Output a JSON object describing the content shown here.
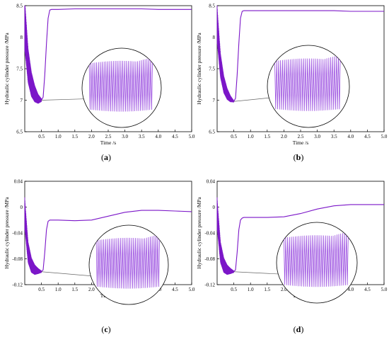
{
  "colors": {
    "series": "#7b16c8",
    "inset_series": "#9b4fe0",
    "axis": "#000000",
    "connector": "#666666"
  },
  "chart_data": [
    {
      "panel": "a",
      "type": "line",
      "xlabel": "Time /s",
      "ylabel": "Hydraulic cylinder pressure /MPa",
      "xlim": [
        0,
        5.0
      ],
      "ylim": [
        6.5,
        8.5
      ],
      "xticks": [
        "0.5",
        "1.0",
        "1.5",
        "2.0",
        "2.5",
        "3.0",
        "3.5",
        "4.0",
        "4.5",
        "5.0"
      ],
      "yticks": [
        "6.5",
        "7",
        "7.5",
        "8",
        "8.5"
      ],
      "ytick_values": [
        6.5,
        7,
        7.5,
        8,
        8.5
      ],
      "x": [
        0.0,
        0.1,
        0.2,
        0.3,
        0.4,
        0.5,
        0.55,
        0.6,
        0.65,
        0.7,
        0.75,
        0.8,
        1.0,
        1.5,
        2.0,
        2.5,
        3.0,
        3.5,
        4.0,
        4.5,
        5.0
      ],
      "y": [
        8.2,
        7.55,
        7.25,
        7.1,
        7.02,
        7.0,
        7.05,
        7.4,
        7.9,
        8.3,
        8.43,
        8.44,
        8.44,
        8.45,
        8.45,
        8.45,
        8.45,
        8.45,
        8.44,
        8.44,
        8.44
      ],
      "oscillation": {
        "x_end": 0.5,
        "amplitude_start": 0.85,
        "amplitude_end": 0.05
      },
      "zoom_point": [
        0.5,
        7.0
      ]
    },
    {
      "panel": "b",
      "type": "line",
      "xlabel": "Time /s",
      "ylabel": "Hydraulic cylinder pressure /MPa",
      "xlim": [
        0,
        5.0
      ],
      "ylim": [
        6.5,
        8.5
      ],
      "xticks": [
        "0.5",
        "1.0",
        "1.5",
        "2.0",
        "2.5",
        "3.0",
        "3.5",
        "4.0",
        "4.5",
        "5.0"
      ],
      "yticks": [
        "6.5",
        "7",
        "7.5",
        "8",
        "8.5"
      ],
      "ytick_values": [
        6.5,
        7,
        7.5,
        8,
        8.5
      ],
      "x": [
        0.0,
        0.1,
        0.2,
        0.3,
        0.4,
        0.5,
        0.55,
        0.6,
        0.65,
        0.7,
        0.75,
        0.8,
        1.0,
        1.5,
        2.0,
        2.5,
        3.0,
        3.5,
        4.0,
        4.5,
        5.0
      ],
      "y": [
        8.2,
        7.55,
        7.25,
        7.1,
        7.02,
        6.98,
        7.03,
        7.4,
        7.9,
        8.3,
        8.41,
        8.42,
        8.42,
        8.42,
        8.42,
        8.42,
        8.42,
        8.42,
        8.41,
        8.41,
        8.41
      ],
      "oscillation": {
        "x_end": 0.5,
        "amplitude_start": 0.6,
        "amplitude_end": 0.03
      },
      "zoom_point": [
        0.5,
        6.98
      ]
    },
    {
      "panel": "c",
      "type": "line",
      "xlabel": "Time /s",
      "ylabel": "Hydraulic cylinder pressure /MPa",
      "xlim": [
        0,
        5.0
      ],
      "ylim": [
        -0.12,
        0.04
      ],
      "xticks": [
        "0.5",
        "1.0",
        "1.5",
        "2.0",
        "2.5",
        "3.0",
        "3.5",
        "4.0",
        "4.5",
        "5.0"
      ],
      "yticks": [
        "-0.12",
        "-0.08",
        "-0.04",
        "0",
        "0.04"
      ],
      "ytick_values": [
        -0.12,
        -0.08,
        -0.04,
        0,
        0.04
      ],
      "x": [
        0.0,
        0.1,
        0.2,
        0.3,
        0.4,
        0.5,
        0.55,
        0.6,
        0.65,
        0.7,
        0.75,
        0.8,
        1.0,
        1.5,
        2.0,
        2.5,
        3.0,
        3.5,
        4.0,
        4.5,
        5.0
      ],
      "y": [
        -0.01,
        -0.07,
        -0.09,
        -0.097,
        -0.099,
        -0.1,
        -0.097,
        -0.07,
        -0.035,
        -0.022,
        -0.02,
        -0.02,
        -0.02,
        -0.021,
        -0.02,
        -0.014,
        -0.008,
        -0.005,
        -0.005,
        -0.006,
        -0.007
      ],
      "oscillation": {
        "x_end": 0.5,
        "amplitude_start": 0.05,
        "amplitude_end": 0.003
      },
      "zoom_point": [
        0.5,
        -0.1
      ]
    },
    {
      "panel": "d",
      "type": "line",
      "xlabel": "Time /s",
      "ylabel": "Hydraulic cylinder pressure /MPa",
      "xlim": [
        0,
        5.0
      ],
      "ylim": [
        -0.12,
        0.04
      ],
      "xticks": [
        "0.5",
        "1.0",
        "1.5",
        "2.0",
        "2.5",
        "3.0",
        "3.5",
        "4.0",
        "4.5",
        "5.0"
      ],
      "yticks": [
        "-0.12",
        "-0.08",
        "-0.04",
        "0",
        "0.04"
      ],
      "ytick_values": [
        -0.12,
        -0.08,
        -0.04,
        0,
        0.04
      ],
      "x": [
        0.0,
        0.1,
        0.2,
        0.3,
        0.4,
        0.5,
        0.55,
        0.6,
        0.65,
        0.7,
        0.75,
        0.8,
        1.0,
        1.5,
        2.0,
        2.5,
        3.0,
        3.5,
        4.0,
        4.5,
        5.0
      ],
      "y": [
        -0.01,
        -0.07,
        -0.09,
        -0.097,
        -0.099,
        -0.1,
        -0.097,
        -0.07,
        -0.035,
        -0.02,
        -0.017,
        -0.016,
        -0.016,
        -0.016,
        -0.015,
        -0.01,
        -0.003,
        0.002,
        0.004,
        0.004,
        0.004
      ],
      "oscillation": {
        "x_end": 0.5,
        "amplitude_start": 0.05,
        "amplitude_end": 0.003
      },
      "zoom_point": [
        0.5,
        -0.1
      ]
    }
  ],
  "panel_labels": [
    {
      "open": "(",
      "letter": "a",
      "close": ")"
    },
    {
      "open": "(",
      "letter": "b",
      "close": ")"
    },
    {
      "open": "(",
      "letter": "c",
      "close": ")"
    },
    {
      "open": "(",
      "letter": "d",
      "close": ")"
    }
  ]
}
